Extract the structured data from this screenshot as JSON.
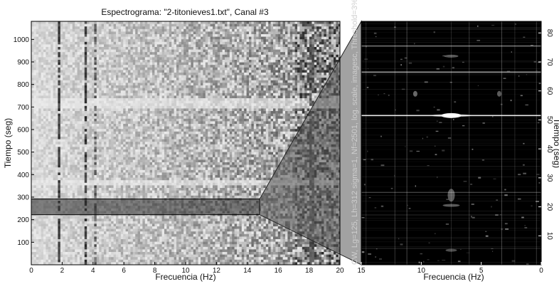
{
  "chart_data": [
    {
      "type": "heatmap",
      "title": "Espectrograma: \"2-titonieves1.txt\", Canal #3",
      "xlabel": "Frecuencia (Hz)",
      "ylabel": "Tiempo (seg)",
      "xlim": [
        0,
        20
      ],
      "ylim": [
        0,
        1080
      ],
      "x_ticks": [
        "0",
        "2",
        "4",
        "6",
        "8",
        "10",
        "12",
        "14",
        "16",
        "18",
        "20"
      ],
      "y_ticks": [
        "100",
        "200",
        "300",
        "400",
        "500",
        "600",
        "700",
        "800",
        "900",
        "1000"
      ],
      "highlight": {
        "x": [
          0,
          14.8
        ],
        "y": [
          222,
          292
        ]
      },
      "colormap": "gray-reversed"
    },
    {
      "type": "heatmap",
      "xlabel": "Frecuencia (Hz)",
      "ylabel": "Tiempo (seg)",
      "xlim": [
        15,
        0
      ],
      "ylim": [
        0,
        84
      ],
      "x_ticks": [
        "15",
        "10",
        "5",
        "0"
      ],
      "y_ticks": [
        "10",
        "20",
        "30",
        "40",
        "50",
        "60",
        "70",
        "80"
      ],
      "annotation": "CW, Lg=125, Lh=312 sigma=1, Nf=2501, log. scale, imagesc, Threshold=3%",
      "colormap": "gray"
    }
  ]
}
